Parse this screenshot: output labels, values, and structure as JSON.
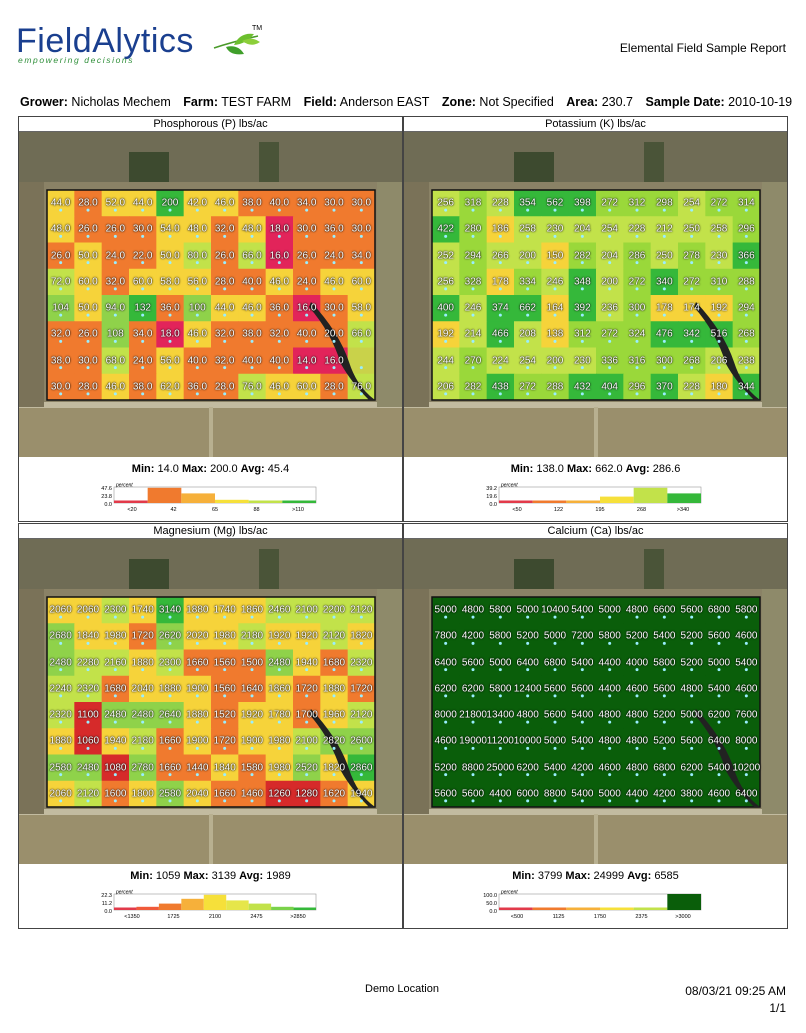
{
  "header": {
    "logo_text_a": "Field",
    "logo_text_b": "Alytics",
    "logo_tagline": "empowering decisions",
    "logo_tm": "TM",
    "report_title": "Elemental Field Sample Report"
  },
  "info": {
    "grower_label": "Grower:",
    "grower": "Nicholas Mechem",
    "farm_label": "Farm:",
    "farm": "TEST FARM",
    "field_label": "Field:",
    "field": "Anderson EAST",
    "zone_label": "Zone:",
    "zone": "Not Specified",
    "area_label": "Area:",
    "area": "230.7",
    "date_label": "Sample Date:",
    "date": "2010-10-19"
  },
  "colors": {
    "red": "#d62a2a",
    "orange": "#f07a2e",
    "yellow": "#f6d33a",
    "lime": "#c2e24a",
    "green": "#35b83a",
    "darkgreen": "#0a5e0a"
  },
  "panels": [
    {
      "title": "Phosphorous (P) lbs/ac",
      "min_label": "Min:",
      "min": "14.0",
      "max_label": "Max:",
      "max": "200.0",
      "avg_label": "Avg:",
      "avg": "45.4",
      "legend": {
        "yticks": [
          "47.6",
          "23.8",
          "0.0"
        ],
        "unit": "percent",
        "xticks": [
          "<20",
          "42",
          "65",
          "88",
          ">110"
        ],
        "bars": [
          {
            "color": "#e23a4a",
            "v": 0.05
          },
          {
            "color": "#f07a2e",
            "v": 0.95
          },
          {
            "color": "#f6b03a",
            "v": 0.6
          },
          {
            "color": "#f6e03a",
            "v": 0.2
          },
          {
            "color": "#c2e24a",
            "v": 0.1
          },
          {
            "color": "#35b83a",
            "v": 0.1
          }
        ]
      },
      "scheme": "p",
      "rows": [
        [
          "44.0",
          "28.0",
          "52.0",
          "44.0",
          "200",
          "42.0",
          "46.0",
          "38.0",
          "40.0",
          "34.0",
          "30.0",
          "30.0"
        ],
        [
          "48.0",
          "26.0",
          "26.0",
          "30.0",
          "54.0",
          "48.0",
          "32.0",
          "48.0",
          "18.0",
          "30.0",
          "36.0",
          "30.0"
        ],
        [
          "26.0",
          "50.0",
          "24.0",
          "22.0",
          "50.0",
          "80.0",
          "26.0",
          "66.0",
          "16.0",
          "26.0",
          "24.0",
          "34.0"
        ],
        [
          "72.0",
          "60.0",
          "32.0",
          "60.0",
          "58.0",
          "56.0",
          "28.0",
          "40.0",
          "46.0",
          "24.0",
          "46.0",
          "60.0"
        ],
        [
          "104",
          "50.0",
          "94.0",
          "132",
          "36.0",
          "100",
          "44.0",
          "46.0",
          "36.0",
          "16.0",
          "30.0",
          "58.0"
        ],
        [
          "32.0",
          "26.0",
          "108",
          "34.0",
          "18.0",
          "46.0",
          "32.0",
          "38.0",
          "32.0",
          "40.0",
          "20.0",
          "66.0"
        ],
        [
          "38.0",
          "30.0",
          "68.0",
          "24.0",
          "56.0",
          "40.0",
          "32.0",
          "40.0",
          "40.0",
          "14.0",
          "16.0",
          ""
        ],
        [
          "30.0",
          "28.0",
          "46.0",
          "38.0",
          "62.0",
          "36.0",
          "28.0",
          "76.0",
          "46.0",
          "60.0",
          "28.0",
          "76.0"
        ]
      ]
    },
    {
      "title": "Potassium (K) lbs/ac",
      "min_label": "Min:",
      "min": "138.0",
      "max_label": "Max:",
      "max": "662.0",
      "avg_label": "Avg:",
      "avg": "286.6",
      "legend": {
        "yticks": [
          "39.2",
          "19.6",
          "0.0"
        ],
        "unit": "percent",
        "xticks": [
          "<50",
          "122",
          "195",
          "268",
          ">340"
        ],
        "bars": [
          {
            "color": "#e23a4a",
            "v": 0.02
          },
          {
            "color": "#f07a2e",
            "v": 0.05
          },
          {
            "color": "#f6b03a",
            "v": 0.1
          },
          {
            "color": "#f6e03a",
            "v": 0.4
          },
          {
            "color": "#c2e24a",
            "v": 0.95
          },
          {
            "color": "#35b83a",
            "v": 0.6
          }
        ]
      },
      "scheme": "k",
      "rows": [
        [
          "256",
          "318",
          "228",
          "354",
          "562",
          "398",
          "272",
          "312",
          "298",
          "254",
          "272",
          "314"
        ],
        [
          "422",
          "280",
          "186",
          "258",
          "230",
          "204",
          "254",
          "228",
          "212",
          "250",
          "258",
          "296"
        ],
        [
          "252",
          "294",
          "266",
          "200",
          "150",
          "282",
          "204",
          "286",
          "250",
          "278",
          "230",
          "366"
        ],
        [
          "256",
          "328",
          "178",
          "334",
          "246",
          "348",
          "200",
          "272",
          "340",
          "272",
          "310",
          "288"
        ],
        [
          "400",
          "246",
          "374",
          "662",
          "164",
          "392",
          "236",
          "300",
          "178",
          "174",
          "192",
          "294"
        ],
        [
          "192",
          "214",
          "466",
          "208",
          "138",
          "312",
          "272",
          "324",
          "476",
          "342",
          "516",
          "268"
        ],
        [
          "244",
          "270",
          "224",
          "254",
          "200",
          "230",
          "336",
          "316",
          "300",
          "268",
          "206",
          "238"
        ],
        [
          "206",
          "282",
          "438",
          "272",
          "288",
          "432",
          "404",
          "296",
          "370",
          "228",
          "180",
          "344"
        ]
      ]
    },
    {
      "title": "Magnesium (Mg) lbs/ac",
      "min_label": "Min:",
      "min": "1059",
      "max_label": "Max:",
      "max": "3139",
      "avg_label": "Avg:",
      "avg": "1989",
      "legend": {
        "yticks": [
          "22.3",
          "11.2",
          "0.0"
        ],
        "unit": "percent",
        "xticks": [
          "<1350",
          "1725",
          "2100",
          "2475",
          ">2850"
        ],
        "bars": [
          {
            "color": "#e23a4a",
            "v": 0.05
          },
          {
            "color": "#f05a3a",
            "v": 0.2
          },
          {
            "color": "#f07a2e",
            "v": 0.4
          },
          {
            "color": "#f6b03a",
            "v": 0.7
          },
          {
            "color": "#f6e03a",
            "v": 0.95
          },
          {
            "color": "#e6e64a",
            "v": 0.6
          },
          {
            "color": "#c2e24a",
            "v": 0.4
          },
          {
            "color": "#7ad24a",
            "v": 0.2
          },
          {
            "color": "#35b83a",
            "v": 0.1
          }
        ]
      },
      "scheme": "mg",
      "rows": [
        [
          "2060",
          "2060",
          "2300",
          "1740",
          "3140",
          "1880",
          "1740",
          "1860",
          "2460",
          "2100",
          "2200",
          "2120"
        ],
        [
          "2680",
          "1840",
          "1980",
          "1720",
          "2620",
          "2020",
          "1980",
          "2180",
          "1920",
          "1920",
          "2120",
          "1820"
        ],
        [
          "2480",
          "2280",
          "2160",
          "1880",
          "2300",
          "1660",
          "1560",
          "1500",
          "2480",
          "1940",
          "1680",
          "2320"
        ],
        [
          "2240",
          "2320",
          "1680",
          "2040",
          "1880",
          "1900",
          "1560",
          "1640",
          "1860",
          "1720",
          "1880",
          "1720"
        ],
        [
          "2320",
          "1100",
          "2480",
          "2480",
          "2640",
          "1880",
          "1520",
          "1920",
          "1780",
          "1700",
          "1960",
          "2120"
        ],
        [
          "1880",
          "1060",
          "1940",
          "2180",
          "1660",
          "1900",
          "1720",
          "1900",
          "1980",
          "2100",
          "2820",
          "2600"
        ],
        [
          "2580",
          "2480",
          "1080",
          "2780",
          "1660",
          "1440",
          "1840",
          "1580",
          "1980",
          "2520",
          "1820",
          "2860"
        ],
        [
          "2060",
          "2120",
          "1600",
          "1800",
          "2580",
          "2040",
          "1660",
          "1460",
          "1260",
          "1280",
          "1620",
          "1940"
        ]
      ]
    },
    {
      "title": "Calcium (Ca) lbs/ac",
      "min_label": "Min:",
      "min": "3799",
      "max_label": "Max:",
      "max": "24999",
      "avg_label": "Avg:",
      "avg": "6585",
      "legend": {
        "yticks": [
          "100.0",
          "50.0",
          "0.0"
        ],
        "unit": "percent",
        "xticks": [
          "<500",
          "1125",
          "1750",
          "2375",
          ">3000"
        ],
        "bars": [
          {
            "color": "#e23a4a",
            "v": 0
          },
          {
            "color": "#f07a2e",
            "v": 0
          },
          {
            "color": "#f6b03a",
            "v": 0
          },
          {
            "color": "#f6e03a",
            "v": 0
          },
          {
            "color": "#c2e24a",
            "v": 0
          },
          {
            "color": "#0a5e0a",
            "v": 1
          }
        ]
      },
      "scheme": "ca",
      "rows": [
        [
          "5000",
          "4800",
          "5800",
          "5000",
          "10400",
          "5400",
          "5000",
          "4800",
          "6600",
          "5600",
          "6800",
          "5800"
        ],
        [
          "7800",
          "4200",
          "5800",
          "5200",
          "5000",
          "7200",
          "5800",
          "5200",
          "5400",
          "5200",
          "5600",
          "4600"
        ],
        [
          "6400",
          "5600",
          "5000",
          "6400",
          "6800",
          "5400",
          "4400",
          "4000",
          "5800",
          "5200",
          "5000",
          "5400"
        ],
        [
          "6200",
          "6200",
          "5800",
          "12400",
          "5600",
          "5600",
          "4400",
          "4600",
          "5600",
          "4800",
          "5400",
          "4600"
        ],
        [
          "8000",
          "21800",
          "13400",
          "4800",
          "5600",
          "5400",
          "4800",
          "4800",
          "5200",
          "5000",
          "6200",
          "7600"
        ],
        [
          "4600",
          "19000",
          "11200",
          "10000",
          "5000",
          "5400",
          "4800",
          "4800",
          "5200",
          "5600",
          "6400",
          "8000"
        ],
        [
          "5200",
          "8800",
          "25000",
          "6200",
          "5400",
          "4200",
          "4600",
          "4800",
          "6800",
          "6200",
          "5400",
          "10200"
        ],
        [
          "5600",
          "5600",
          "4400",
          "6000",
          "8800",
          "5400",
          "5000",
          "4400",
          "4200",
          "3800",
          "4600",
          "6400"
        ]
      ]
    }
  ],
  "footer": {
    "location": "Demo Location",
    "datetime": "08/03/21 09:25 AM",
    "page": "1/1"
  }
}
